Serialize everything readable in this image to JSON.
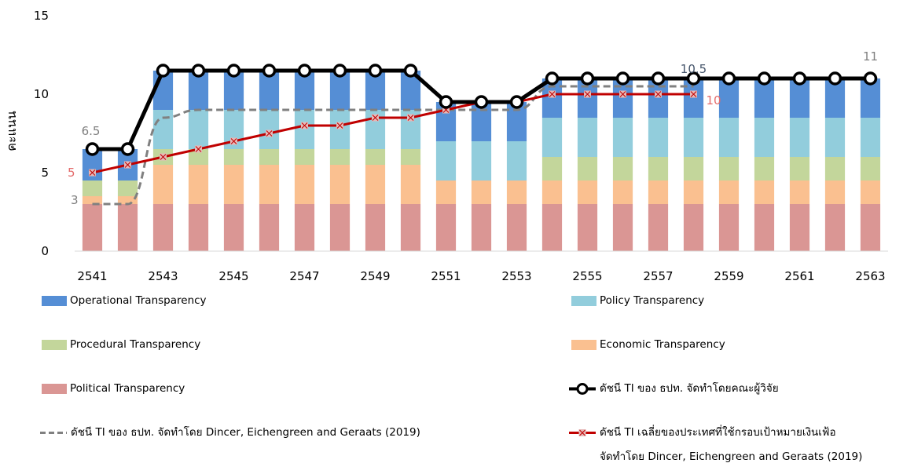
{
  "chart_data": {
    "type": "bar",
    "ylabel": "คะแนน",
    "ylim": [
      0,
      15
    ],
    "yticks": [
      "0",
      "5",
      "10",
      "15"
    ],
    "categories": [
      "2541",
      "2542",
      "2543",
      "2544",
      "2545",
      "2546",
      "2547",
      "2548",
      "2549",
      "2550",
      "2551",
      "2552",
      "2553",
      "2554",
      "2555",
      "2556",
      "2557",
      "2558",
      "2559",
      "2560",
      "2561",
      "2562",
      "2563"
    ],
    "x_tick_labels": [
      "2541",
      "2543",
      "2545",
      "2547",
      "2549",
      "2551",
      "2553",
      "2555",
      "2557",
      "2559",
      "2561",
      "2563"
    ],
    "stacked_series": [
      {
        "name": "Political Transparency",
        "color": "#DA9694",
        "values": [
          3,
          3,
          3,
          3,
          3,
          3,
          3,
          3,
          3,
          3,
          3,
          3,
          3,
          3,
          3,
          3,
          3,
          3,
          3,
          3,
          3,
          3,
          3
        ]
      },
      {
        "name": "Economic Transparency",
        "color": "#FAC090",
        "values": [
          0.5,
          0.5,
          2.5,
          2.5,
          2.5,
          2.5,
          2.5,
          2.5,
          2.5,
          2.5,
          1.5,
          1.5,
          1.5,
          1.5,
          1.5,
          1.5,
          1.5,
          1.5,
          1.5,
          1.5,
          1.5,
          1.5,
          1.5
        ]
      },
      {
        "name": "Procedural Transparency",
        "color": "#C3D69B",
        "values": [
          1,
          1,
          1,
          1,
          1,
          1,
          1,
          1,
          1,
          1,
          0,
          0,
          0,
          1.5,
          1.5,
          1.5,
          1.5,
          1.5,
          1.5,
          1.5,
          1.5,
          1.5,
          1.5
        ]
      },
      {
        "name": "Policy Transparency",
        "color": "#92CDDC",
        "values": [
          0,
          0,
          2.5,
          2.5,
          2.5,
          2.5,
          2.5,
          2.5,
          2.5,
          2.5,
          2.5,
          2.5,
          2.5,
          2.5,
          2.5,
          2.5,
          2.5,
          2.5,
          2.5,
          2.5,
          2.5,
          2.5,
          2.5
        ]
      },
      {
        "name": "Operational Transparency",
        "color": "#558ED5",
        "values": [
          2,
          2,
          2.5,
          2.5,
          2.5,
          2.5,
          2.5,
          2.5,
          2.5,
          2.5,
          2.5,
          2.5,
          2.5,
          2.5,
          2.5,
          2.5,
          2.5,
          2.5,
          2.5,
          2.5,
          2.5,
          2.5,
          2.5
        ]
      }
    ],
    "line_series": [
      {
        "name": "ดัชนี TI ของ ธปท. จัดทำโดยคณะผู้วิจัย",
        "color": "#000000",
        "style": "solid-circles",
        "values": [
          6.5,
          6.5,
          11.5,
          11.5,
          11.5,
          11.5,
          11.5,
          11.5,
          11.5,
          11.5,
          9.5,
          9.5,
          9.5,
          11,
          11,
          11,
          11,
          11,
          11,
          11,
          11,
          11,
          11
        ]
      },
      {
        "name": "ดัชนี TI ของ ธปท. จัดทำโดย Dincer, Eichengreen and Geraats (2019)",
        "color": "#808080",
        "style": "dashed",
        "values": [
          3,
          3,
          8.5,
          9,
          9,
          9,
          9,
          9,
          9,
          9,
          9,
          9,
          9,
          10.5,
          10.5,
          10.5,
          10.5,
          10.5,
          null,
          null,
          null,
          null,
          null
        ]
      },
      {
        "name": "ดัชนี TI เฉลี่ยของประเทศที่ใช้กรอบเป้าหมายเงินเฟ้อ จัดทำโดย Dincer, Eichengreen and Geraats (2019)",
        "color": "#C00000",
        "style": "solid-x-markers",
        "values": [
          5,
          5.5,
          6,
          6.5,
          7,
          7.5,
          8,
          8,
          8.5,
          8.5,
          9,
          9.5,
          9.5,
          10,
          10,
          10,
          10,
          10,
          null,
          null,
          null,
          null,
          null
        ]
      }
    ],
    "annotations": [
      {
        "text": "6.5",
        "color": "#7F7F7F"
      },
      {
        "text": "5",
        "color": "#E46C6C"
      },
      {
        "text": "3",
        "color": "#7F7F7F"
      },
      {
        "text": "10.5",
        "color": "#44546A"
      },
      {
        "text": "10",
        "color": "#E46C6C"
      },
      {
        "text": "11",
        "color": "#7F7F7F"
      }
    ],
    "grid": false,
    "legend_position": "bottom"
  },
  "legend": {
    "operational": "Operational Transparency",
    "policy": "Policy Transparency",
    "procedural": "Procedural Transparency",
    "economic": "Economic Transparency",
    "political": "Political Transparency",
    "ti_researchers": "ดัชนี TI ของ ธปท. จัดทำโดยคณะผู้วิจัย",
    "ti_deg": "ดัชนี TI ของ ธปท. จัดทำโดย Dincer, Eichengreen and Geraats (2019)",
    "ti_avg_line1": "ดัชนี TI เฉลี่ยของประเทศที่ใช้กรอบเป้าหมายเงินเฟ้อ",
    "ti_avg_line2": "จัดทำโดย Dincer, Eichengreen and Geraats (2019)"
  },
  "colors": {
    "operational": "#558ED5",
    "policy": "#92CDDC",
    "procedural": "#C3D69B",
    "economic": "#FAC090",
    "political": "#DA9694",
    "line_black": "#000000",
    "line_gray": "#808080",
    "line_red": "#C00000"
  }
}
